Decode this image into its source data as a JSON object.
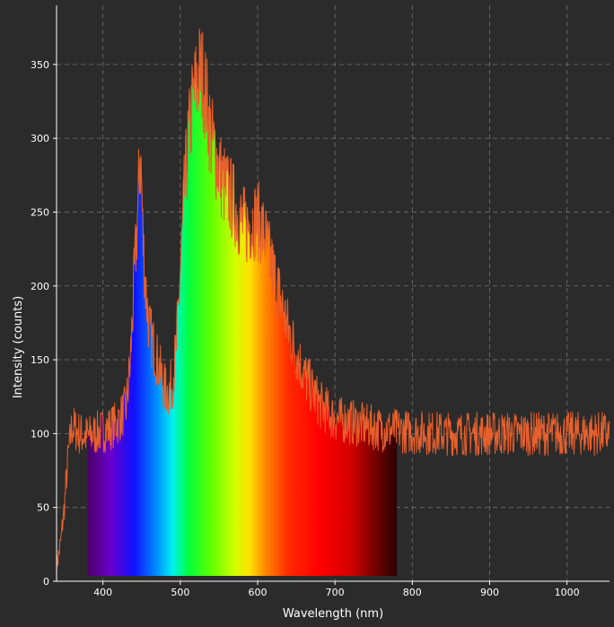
{
  "chart_data": {
    "type": "line",
    "title": "",
    "xlabel": "Wavelength (nm)",
    "ylabel": "Intensity (counts)",
    "xlim": [
      340,
      1055
    ],
    "ylim": [
      0,
      390
    ],
    "x_ticks": [
      400,
      500,
      600,
      700,
      800,
      900,
      1000
    ],
    "y_ticks": [
      0,
      50,
      100,
      150,
      200,
      250,
      300,
      350
    ],
    "grid": true,
    "visible_spectrum_fill": {
      "from_nm": 380,
      "to_nm": 780
    },
    "series": [
      {
        "color": "#e8602c",
        "x": [
          340,
          345,
          350,
          355,
          360,
          370,
          380,
          390,
          400,
          410,
          420,
          430,
          435,
          440,
          445,
          448,
          450,
          452,
          455,
          460,
          465,
          470,
          475,
          480,
          485,
          490,
          495,
          500,
          505,
          510,
          515,
          520,
          525,
          530,
          535,
          540,
          545,
          550,
          555,
          560,
          565,
          570,
          575,
          580,
          585,
          590,
          595,
          600,
          605,
          610,
          615,
          620,
          625,
          630,
          640,
          650,
          660,
          670,
          680,
          690,
          700,
          720,
          740,
          760,
          780,
          800,
          850,
          900,
          950,
          1000,
          1050,
          1055
        ],
        "y": [
          10,
          25,
          50,
          85,
          105,
          100,
          98,
          100,
          102,
          104,
          108,
          118,
          145,
          200,
          250,
          290,
          270,
          230,
          200,
          170,
          160,
          150,
          140,
          130,
          128,
          135,
          160,
          210,
          260,
          295,
          320,
          335,
          345,
          340,
          320,
          300,
          290,
          280,
          270,
          265,
          260,
          255,
          248,
          242,
          240,
          242,
          245,
          245,
          240,
          232,
          220,
          210,
          200,
          190,
          170,
          155,
          140,
          130,
          120,
          115,
          110,
          108,
          105,
          103,
          102,
          101,
          100,
          100,
          100,
          100,
          100,
          100
        ]
      }
    ]
  }
}
